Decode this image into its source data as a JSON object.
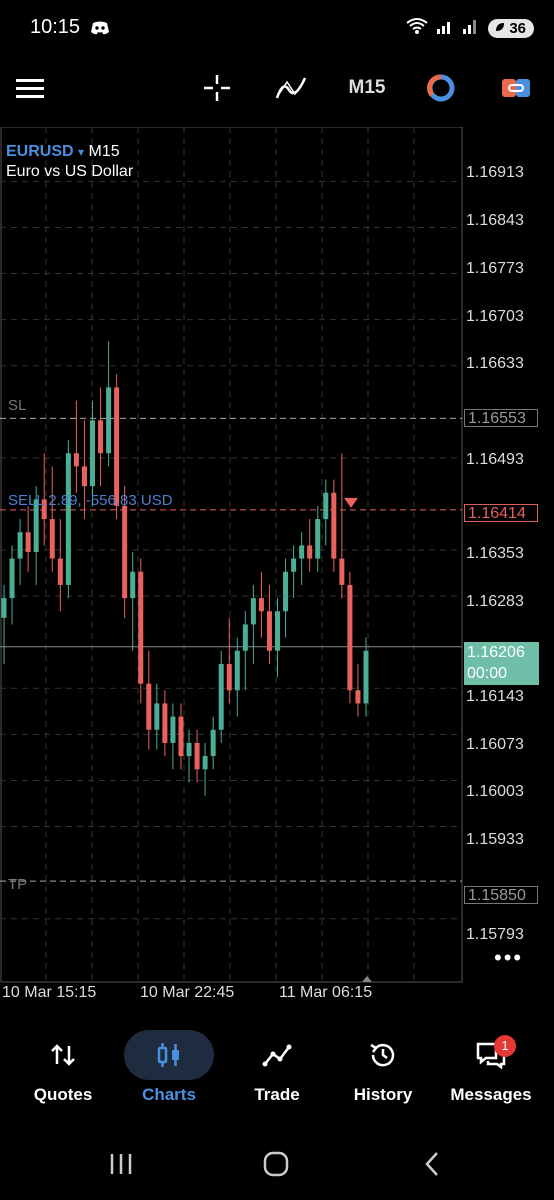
{
  "status_bar": {
    "time": "10:15",
    "battery": "36"
  },
  "toolbar": {
    "timeframe": "M15"
  },
  "chart": {
    "symbol": "EURUSD",
    "dropdown_glyph": "▾",
    "timeframe": "M15",
    "description": "Euro vs US Dollar",
    "sl_label": "SL",
    "tp_label": "TP",
    "sell_label": "SELL 2.89, -556.83 USD",
    "price_axis": [
      "1.16913",
      "1.16843",
      "1.16773",
      "1.16703",
      "1.16633",
      "1.16493",
      "1.16353",
      "1.16283",
      "1.16143",
      "1.16073",
      "1.16003",
      "1.15933",
      "1.15793"
    ],
    "sl_price": "1.16553",
    "sell_price": "1.16414",
    "tp_price": "1.15850",
    "current_price": "1.16206",
    "countdown": "00:00",
    "time_axis": [
      "10 Mar 15:15",
      "10 Mar 22:45",
      "11 Mar 06:15"
    ],
    "more_glyph": "•••"
  },
  "chart_data": {
    "type": "candlestick",
    "symbol": "EURUSD",
    "timeframe": "M15",
    "ylim": [
      1.1575,
      1.1695
    ],
    "horizontal_lines": {
      "SL": 1.16553,
      "SELL": 1.16414,
      "TP": 1.1585,
      "current": 1.16206
    },
    "candles": [
      {
        "o": 1.1625,
        "h": 1.163,
        "l": 1.1618,
        "c": 1.1628
      },
      {
        "o": 1.1628,
        "h": 1.1636,
        "l": 1.1624,
        "c": 1.1634
      },
      {
        "o": 1.1634,
        "h": 1.164,
        "l": 1.163,
        "c": 1.1638
      },
      {
        "o": 1.1638,
        "h": 1.1642,
        "l": 1.1632,
        "c": 1.1635
      },
      {
        "o": 1.1635,
        "h": 1.1645,
        "l": 1.163,
        "c": 1.1643
      },
      {
        "o": 1.1643,
        "h": 1.165,
        "l": 1.1636,
        "c": 1.164
      },
      {
        "o": 1.164,
        "h": 1.1648,
        "l": 1.1632,
        "c": 1.1634
      },
      {
        "o": 1.1634,
        "h": 1.164,
        "l": 1.1626,
        "c": 1.163
      },
      {
        "o": 1.163,
        "h": 1.1652,
        "l": 1.1628,
        "c": 1.165
      },
      {
        "o": 1.165,
        "h": 1.1658,
        "l": 1.1644,
        "c": 1.1648
      },
      {
        "o": 1.1648,
        "h": 1.1655,
        "l": 1.164,
        "c": 1.1645
      },
      {
        "o": 1.1645,
        "h": 1.1658,
        "l": 1.1642,
        "c": 1.1655
      },
      {
        "o": 1.1655,
        "h": 1.166,
        "l": 1.1645,
        "c": 1.165
      },
      {
        "o": 1.165,
        "h": 1.1667,
        "l": 1.1648,
        "c": 1.166
      },
      {
        "o": 1.166,
        "h": 1.1662,
        "l": 1.164,
        "c": 1.1642
      },
      {
        "o": 1.1642,
        "h": 1.1645,
        "l": 1.1625,
        "c": 1.1628
      },
      {
        "o": 1.1628,
        "h": 1.1635,
        "l": 1.162,
        "c": 1.1632
      },
      {
        "o": 1.1632,
        "h": 1.1634,
        "l": 1.1612,
        "c": 1.1615
      },
      {
        "o": 1.1615,
        "h": 1.162,
        "l": 1.1605,
        "c": 1.1608
      },
      {
        "o": 1.1608,
        "h": 1.1615,
        "l": 1.1605,
        "c": 1.1612
      },
      {
        "o": 1.1612,
        "h": 1.1614,
        "l": 1.1604,
        "c": 1.1606
      },
      {
        "o": 1.1606,
        "h": 1.1612,
        "l": 1.1602,
        "c": 1.161
      },
      {
        "o": 1.161,
        "h": 1.1612,
        "l": 1.1602,
        "c": 1.1604
      },
      {
        "o": 1.1604,
        "h": 1.1608,
        "l": 1.16,
        "c": 1.1606
      },
      {
        "o": 1.1606,
        "h": 1.1608,
        "l": 1.16,
        "c": 1.1602
      },
      {
        "o": 1.1602,
        "h": 1.1606,
        "l": 1.1598,
        "c": 1.1604
      },
      {
        "o": 1.1604,
        "h": 1.161,
        "l": 1.1602,
        "c": 1.1608
      },
      {
        "o": 1.1608,
        "h": 1.162,
        "l": 1.1606,
        "c": 1.1618
      },
      {
        "o": 1.1618,
        "h": 1.1625,
        "l": 1.1612,
        "c": 1.1614
      },
      {
        "o": 1.1614,
        "h": 1.1622,
        "l": 1.161,
        "c": 1.162
      },
      {
        "o": 1.162,
        "h": 1.1626,
        "l": 1.1614,
        "c": 1.1624
      },
      {
        "o": 1.1624,
        "h": 1.163,
        "l": 1.1618,
        "c": 1.1628
      },
      {
        "o": 1.1628,
        "h": 1.1632,
        "l": 1.1622,
        "c": 1.1626
      },
      {
        "o": 1.1626,
        "h": 1.163,
        "l": 1.1618,
        "c": 1.162
      },
      {
        "o": 1.162,
        "h": 1.1628,
        "l": 1.1616,
        "c": 1.1626
      },
      {
        "o": 1.1626,
        "h": 1.1634,
        "l": 1.1622,
        "c": 1.1632
      },
      {
        "o": 1.1632,
        "h": 1.1636,
        "l": 1.1628,
        "c": 1.1634
      },
      {
        "o": 1.1634,
        "h": 1.1638,
        "l": 1.163,
        "c": 1.1636
      },
      {
        "o": 1.1636,
        "h": 1.164,
        "l": 1.1632,
        "c": 1.1634
      },
      {
        "o": 1.1634,
        "h": 1.1642,
        "l": 1.1632,
        "c": 1.164
      },
      {
        "o": 1.164,
        "h": 1.1646,
        "l": 1.1636,
        "c": 1.1644
      },
      {
        "o": 1.1644,
        "h": 1.1646,
        "l": 1.1632,
        "c": 1.1634
      },
      {
        "o": 1.1634,
        "h": 1.165,
        "l": 1.1628,
        "c": 1.163
      },
      {
        "o": 1.163,
        "h": 1.1632,
        "l": 1.1612,
        "c": 1.1614
      },
      {
        "o": 1.1614,
        "h": 1.1618,
        "l": 1.161,
        "c": 1.1612
      },
      {
        "o": 1.1612,
        "h": 1.1622,
        "l": 1.161,
        "c": 1.162
      }
    ]
  },
  "nav": {
    "quotes": "Quotes",
    "charts": "Charts",
    "trade": "Trade",
    "history": "History",
    "messages": "Messages",
    "messages_badge": "1"
  }
}
